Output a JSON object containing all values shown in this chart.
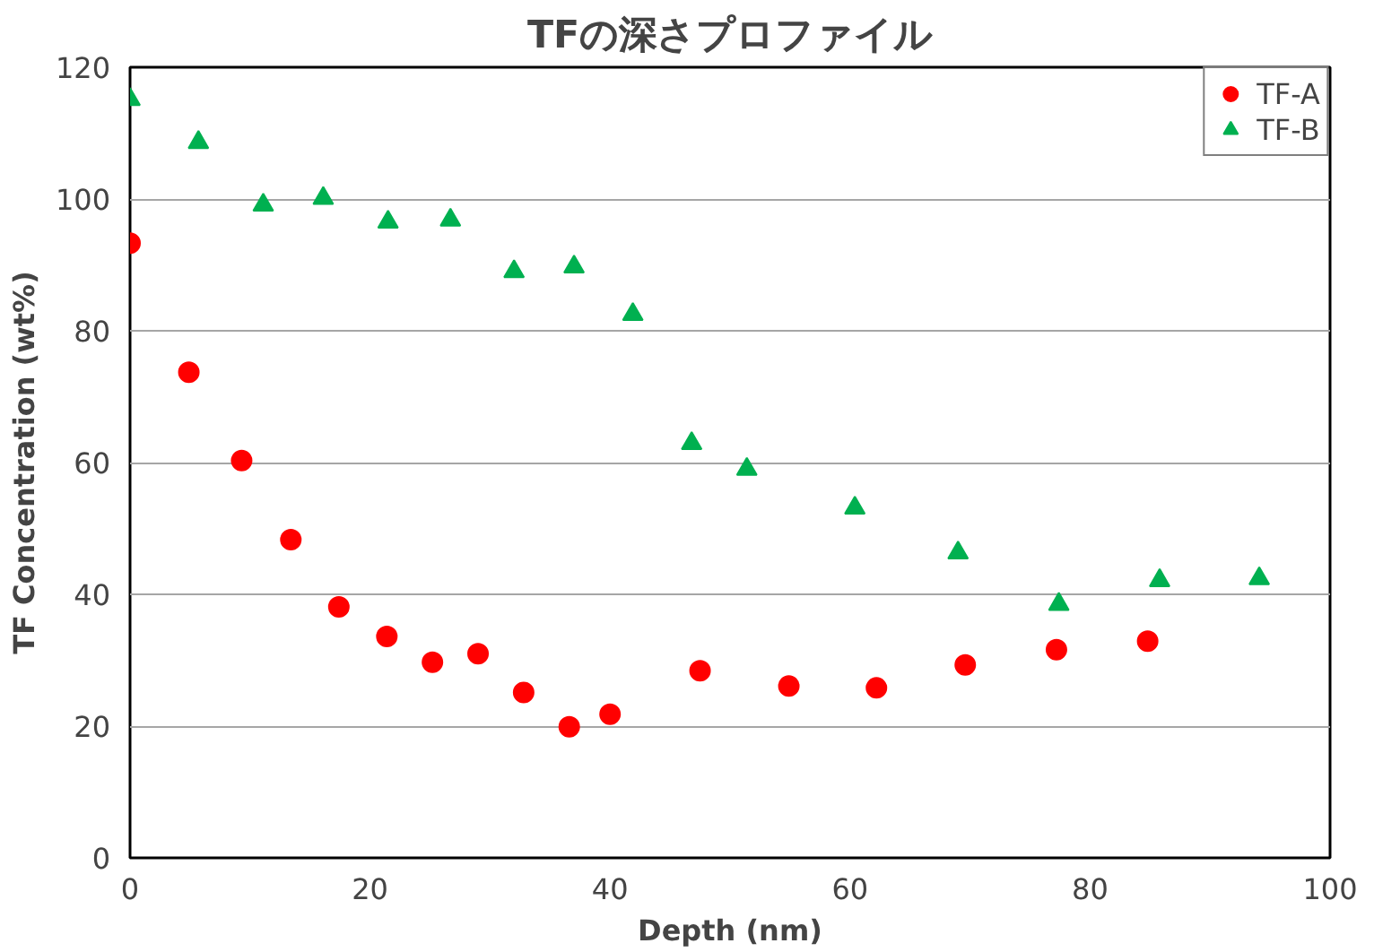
{
  "chart_data": {
    "type": "scatter",
    "title": "TFの深さプロファイル",
    "xlabel": "Depth (nm)",
    "ylabel": "TF Concentration (wt%)",
    "xlim": [
      0,
      100
    ],
    "xticks": [
      0,
      20,
      40,
      60,
      80,
      100
    ],
    "ylim": [
      0,
      120
    ],
    "yticks": [
      0,
      20,
      40,
      60,
      80,
      100,
      120
    ],
    "grid": "y",
    "legend": "top right",
    "series": [
      {
        "name": "TF-A",
        "color": "#ff0000",
        "marker": "circle",
        "x": [
          0,
          4.9,
          9.3,
          13.4,
          17.4,
          21.4,
          25.2,
          29,
          32.8,
          36.6,
          40,
          47.5,
          54.9,
          62.2,
          69.6,
          77.2,
          84.8
        ],
        "values": [
          93.3,
          73.7,
          60.3,
          48.3,
          38.1,
          33.6,
          29.7,
          31,
          25.1,
          19.9,
          21.8,
          28.4,
          26.1,
          25.8,
          29.3,
          31.6,
          32.9
        ]
      },
      {
        "name": "TF-B",
        "color": "#00b050",
        "marker": "triangle",
        "x": [
          0,
          5.7,
          11.1,
          16.1,
          21.5,
          26.7,
          32,
          37,
          41.9,
          46.8,
          51.4,
          60.4,
          69,
          77.4,
          85.8,
          94.1
        ],
        "values": [
          115.1,
          108.6,
          99.1,
          100.1,
          96.5,
          96.8,
          89,
          89.7,
          82.5,
          62.9,
          59,
          53.1,
          46.3,
          38.5,
          42.1,
          42.4
        ]
      }
    ]
  }
}
